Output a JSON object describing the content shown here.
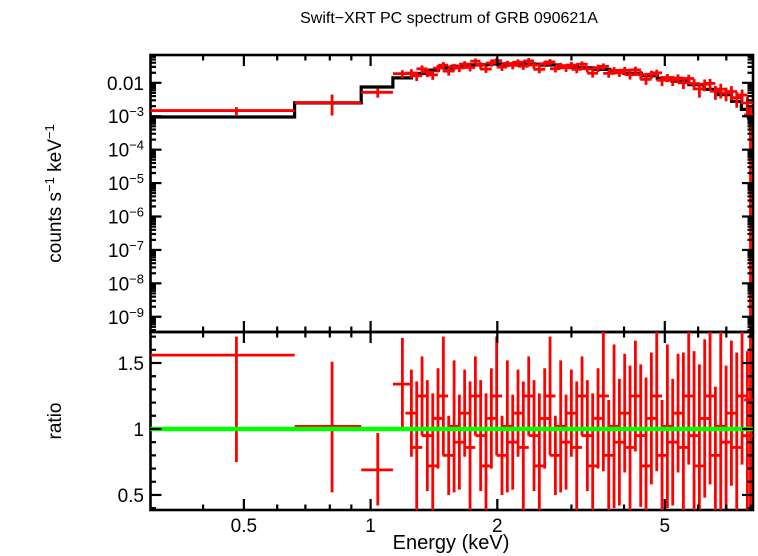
{
  "figure": {
    "background": "#ffffff"
  },
  "chart_data": {
    "type": "line",
    "title": "Swift−XRT PC spectrum of GRB 090621A",
    "xlabel": "Energy (keV)",
    "x_scale": "log",
    "xlim": [
      0.3,
      8.1
    ],
    "x_major_ticks": [
      0.5,
      1,
      2,
      5
    ],
    "x_major_tick_labels": [
      "0.5",
      "1",
      "2",
      "5"
    ],
    "x_minor_ticks": [
      0.4,
      0.6,
      0.7,
      0.8,
      0.9,
      3,
      4,
      6,
      7,
      8
    ],
    "colors": {
      "data": "#ff0000",
      "model": "#000000",
      "reference": "#00ff00",
      "frame": "#000000",
      "text": "#000000"
    },
    "point_format": "[E, dE] or [E, dElo, dEhi] halfwidths keV; [value, err] or [value, errLo, errHi]",
    "panels": [
      {
        "name": "spectrum",
        "ylabel": "counts s^-1 keV^-1",
        "y_scale": "log",
        "ylim": [
          3.5e-10,
          0.068
        ],
        "y_major_ticks": [
          0.01,
          0.001,
          0.0001,
          1e-05,
          1e-06,
          1e-07,
          1e-08,
          1e-09
        ],
        "y_major_tick_labels": [
          "0.01",
          "10^-3",
          "10^-4",
          "10^-5",
          "10^-6",
          "10^-7",
          "10^-8",
          "10^-9"
        ],
        "model_bins": [
          [
            0.3,
            0.66,
            0.00095
          ],
          [
            0.66,
            0.95,
            0.0025
          ],
          [
            0.95,
            1.13,
            0.0075
          ],
          [
            1.13,
            1.25,
            0.014
          ],
          [
            1.25,
            1.35,
            0.019
          ],
          [
            1.35,
            1.45,
            0.024
          ],
          [
            1.45,
            1.56,
            0.028
          ],
          [
            1.56,
            1.7,
            0.0315
          ],
          [
            1.7,
            1.9,
            0.0345
          ],
          [
            1.9,
            2.1,
            0.0365
          ],
          [
            2.1,
            2.32,
            0.0372
          ],
          [
            2.32,
            2.55,
            0.0362
          ],
          [
            2.55,
            2.8,
            0.0342
          ],
          [
            2.8,
            3.1,
            0.0312
          ],
          [
            3.1,
            3.4,
            0.0282
          ],
          [
            3.4,
            3.7,
            0.0252
          ],
          [
            3.7,
            4.0,
            0.0222
          ],
          [
            4.0,
            4.4,
            0.0192
          ],
          [
            4.4,
            4.8,
            0.0162
          ],
          [
            4.8,
            5.2,
            0.0136
          ],
          [
            5.2,
            5.7,
            0.0112
          ],
          [
            5.7,
            6.2,
            0.0088
          ],
          [
            6.2,
            6.7,
            0.0064
          ],
          [
            6.7,
            7.2,
            0.0044
          ],
          [
            7.2,
            7.6,
            0.0028
          ],
          [
            7.6,
            7.9,
            0.0016
          ],
          [
            7.9,
            8.1,
            0.0009
          ]
        ],
        "points": [
          [
            0.48,
            0.18,
            0.18,
            0.00148,
            0.0004,
            0.0004
          ],
          [
            0.81,
            0.15,
            0.14,
            0.00255,
            0.0015,
            0.0019
          ],
          [
            1.04,
            0.09,
            0.09,
            0.0052,
            0.0016,
            0.0016
          ],
          [
            1.19,
            0.06,
            0.06,
            0.0188,
            0.005,
            0.005
          ],
          [
            1.25,
            0.04,
            0.0196,
            0.006
          ],
          [
            1.287,
            0.04,
            0.0163,
            0.005
          ],
          [
            1.325,
            0.04,
            0.0262,
            0.007
          ],
          [
            1.364,
            0.04,
            0.0209,
            0.006
          ],
          [
            1.405,
            0.04,
            0.0173,
            0.005
          ],
          [
            1.446,
            0.04,
            0.0275,
            0.007
          ],
          [
            1.489,
            0.04,
            0.0338,
            0.008
          ],
          [
            1.533,
            0.05,
            0.0224,
            0.006
          ],
          [
            1.579,
            0.05,
            0.0301,
            0.007
          ],
          [
            1.625,
            0.05,
            0.0279,
            0.007
          ],
          [
            1.673,
            0.05,
            0.0364,
            0.008
          ],
          [
            1.723,
            0.05,
            0.0288,
            0.007
          ],
          [
            1.774,
            0.05,
            0.0442,
            0.009
          ],
          [
            1.826,
            0.05,
            0.0334,
            0.008
          ],
          [
            1.88,
            0.06,
            0.0258,
            0.006
          ],
          [
            1.936,
            0.06,
            0.0392,
            0.009
          ],
          [
            1.993,
            0.06,
            0.046,
            0.009
          ],
          [
            2.052,
            0.06,
            0.0296,
            0.007
          ],
          [
            2.113,
            0.06,
            0.0377,
            0.008
          ],
          [
            2.176,
            0.07,
            0.0333,
            0.008
          ],
          [
            2.24,
            0.07,
            0.0412,
            0.009
          ],
          [
            2.306,
            0.07,
            0.0314,
            0.007
          ],
          [
            2.375,
            0.07,
            0.0453,
            0.01
          ],
          [
            2.445,
            0.07,
            0.034,
            0.008
          ],
          [
            2.517,
            0.08,
            0.0253,
            0.006
          ],
          [
            2.592,
            0.08,
            0.0373,
            0.008
          ],
          [
            2.669,
            0.08,
            0.0423,
            0.009
          ],
          [
            2.748,
            0.08,
            0.0264,
            0.006
          ],
          [
            2.829,
            0.08,
            0.0328,
            0.007
          ],
          [
            2.913,
            0.09,
            0.0282,
            0.007
          ],
          [
            2.999,
            0.09,
            0.034,
            0.008
          ],
          [
            3.088,
            0.09,
            0.0254,
            0.006
          ],
          [
            3.179,
            0.1,
            0.0358,
            0.008
          ],
          [
            3.273,
            0.1,
            0.0263,
            0.006
          ],
          [
            3.37,
            0.1,
            0.0193,
            0.005
          ],
          [
            3.47,
            0.1,
            0.028,
            0.007
          ],
          [
            3.573,
            0.11,
            0.0311,
            0.007
          ],
          [
            3.679,
            0.11,
            0.0192,
            0.005
          ],
          [
            3.788,
            0.11,
            0.0236,
            0.006
          ],
          [
            3.9,
            0.12,
            0.02,
            0.005
          ],
          [
            4.015,
            0.12,
            0.0239,
            0.006
          ],
          [
            4.134,
            0.12,
            0.0175,
            0.005
          ],
          [
            4.257,
            0.13,
            0.0244,
            0.006
          ],
          [
            4.383,
            0.13,
            0.0177,
            0.005
          ],
          [
            4.512,
            0.14,
            0.0127,
            0.004
          ],
          [
            4.646,
            0.14,
            0.0181,
            0.005
          ],
          [
            4.784,
            0.14,
            0.0199,
            0.005
          ],
          [
            4.925,
            0.15,
            0.012,
            0.004
          ],
          [
            5.071,
            0.15,
            0.0144,
            0.004
          ],
          [
            5.221,
            0.16,
            0.012,
            0.004
          ],
          [
            5.376,
            0.16,
            0.0139,
            0.004
          ],
          [
            5.535,
            0.17,
            0.01,
            0.0035
          ],
          [
            5.699,
            0.17,
            0.0135,
            0.004
          ],
          [
            5.868,
            0.18,
            0.0095,
            0.0035
          ],
          [
            6.041,
            0.18,
            0.0066,
            0.003
          ],
          [
            6.22,
            0.19,
            0.0091,
            0.0035
          ],
          [
            6.404,
            0.19,
            0.0096,
            0.0035
          ],
          [
            6.594,
            0.2,
            0.0056,
            0.0025
          ],
          [
            6.79,
            0.2,
            0.0064,
            0.003
          ],
          [
            6.991,
            0.21,
            0.005,
            0.0022
          ],
          [
            7.198,
            0.22,
            0.0055,
            0.0025
          ],
          [
            7.411,
            0.22,
            0.0036,
            0.0018
          ],
          [
            7.63,
            0.23,
            0.0043,
            0.002
          ],
          [
            7.856,
            0.24,
            0.0025,
            0.0013
          ],
          [
            7.99,
            0.27,
            0.11,
            0.0011,
            0.0011,
            0.0008
          ]
        ]
      },
      {
        "name": "ratio",
        "ylabel": "ratio",
        "y_scale": "linear",
        "ylim": [
          0.386,
          1.735
        ],
        "y_major_ticks": [
          0.5,
          1,
          1.5
        ],
        "y_major_tick_labels": [
          "0.5",
          "1",
          "1.5"
        ],
        "y_minor_step": 0.1,
        "reference_line": {
          "y": 1,
          "color": "#00ff00"
        },
        "points": [
          [
            0.48,
            0.18,
            0.18,
            1.56,
            0.81,
            0.14
          ],
          [
            0.81,
            0.15,
            0.14,
            1.02,
            0.5,
            0.49
          ],
          [
            1.04,
            0.09,
            0.09,
            0.69,
            0.27,
            0.28
          ],
          [
            1.19,
            0.06,
            0.06,
            1.34,
            0.35,
            0.35
          ],
          [
            1.25,
            0.04,
            1.12,
            0.33
          ],
          [
            1.287,
            0.04,
            0.86,
            0.5
          ],
          [
            1.325,
            0.04,
            1.25,
            0.3
          ],
          [
            1.364,
            0.04,
            0.95,
            0.42
          ],
          [
            1.405,
            0.04,
            0.72,
            0.55
          ],
          [
            1.446,
            0.04,
            1.08,
            0.38
          ],
          [
            1.489,
            0.04,
            1.25,
            0.45
          ],
          [
            1.533,
            0.05,
            0.8,
            0.3
          ],
          [
            1.579,
            0.05,
            1.02,
            0.5
          ],
          [
            1.625,
            0.05,
            0.9,
            0.36
          ],
          [
            1.673,
            0.05,
            1.12,
            0.33
          ],
          [
            1.723,
            0.05,
            0.86,
            0.5
          ],
          [
            1.774,
            0.05,
            1.25,
            0.3
          ],
          [
            1.826,
            0.05,
            0.95,
            0.42
          ],
          [
            1.88,
            0.06,
            0.72,
            0.55
          ],
          [
            1.936,
            0.06,
            1.08,
            0.38
          ],
          [
            1.993,
            0.06,
            1.25,
            0.45
          ],
          [
            2.052,
            0.06,
            0.8,
            0.3
          ],
          [
            2.113,
            0.06,
            1.02,
            0.5
          ],
          [
            2.176,
            0.07,
            0.9,
            0.36
          ],
          [
            2.24,
            0.07,
            1.12,
            0.33
          ],
          [
            2.306,
            0.07,
            0.86,
            0.5
          ],
          [
            2.375,
            0.07,
            1.25,
            0.3
          ],
          [
            2.445,
            0.07,
            0.95,
            0.42
          ],
          [
            2.517,
            0.08,
            0.72,
            0.55
          ],
          [
            2.592,
            0.08,
            1.08,
            0.38
          ],
          [
            2.669,
            0.08,
            1.25,
            0.45
          ],
          [
            2.748,
            0.08,
            0.8,
            0.3
          ],
          [
            2.829,
            0.08,
            1.02,
            0.5
          ],
          [
            2.913,
            0.09,
            0.9,
            0.36
          ],
          [
            2.999,
            0.09,
            1.12,
            0.33
          ],
          [
            3.088,
            0.09,
            0.86,
            0.5
          ],
          [
            3.179,
            0.1,
            1.25,
            0.3
          ],
          [
            3.273,
            0.1,
            0.95,
            0.42
          ],
          [
            3.37,
            0.1,
            0.72,
            0.55
          ],
          [
            3.47,
            0.1,
            1.08,
            0.38
          ],
          [
            3.573,
            0.11,
            1.25,
            0.57
          ],
          [
            3.679,
            0.11,
            0.8,
            0.42
          ],
          [
            3.788,
            0.11,
            1.02,
            0.62
          ],
          [
            3.9,
            0.12,
            0.9,
            0.48
          ],
          [
            4.015,
            0.12,
            1.12,
            0.45
          ],
          [
            4.134,
            0.12,
            0.86,
            0.62
          ],
          [
            4.257,
            0.13,
            1.25,
            0.42
          ],
          [
            4.383,
            0.13,
            0.95,
            0.54
          ],
          [
            4.512,
            0.14,
            0.72,
            0.67
          ],
          [
            4.646,
            0.14,
            1.08,
            0.5
          ],
          [
            4.784,
            0.14,
            1.25,
            0.57
          ],
          [
            4.925,
            0.15,
            0.8,
            0.42
          ],
          [
            5.071,
            0.15,
            1.02,
            0.62
          ],
          [
            5.221,
            0.16,
            0.9,
            0.48
          ],
          [
            5.376,
            0.16,
            1.12,
            0.45
          ],
          [
            5.535,
            0.17,
            0.86,
            0.72
          ],
          [
            5.699,
            0.17,
            1.25,
            0.52
          ],
          [
            5.868,
            0.18,
            0.95,
            0.64
          ],
          [
            6.041,
            0.18,
            0.72,
            0.77
          ],
          [
            6.22,
            0.19,
            1.08,
            0.6
          ],
          [
            6.404,
            0.19,
            1.25,
            0.67
          ],
          [
            6.594,
            0.2,
            0.8,
            0.52
          ],
          [
            6.79,
            0.2,
            1.02,
            0.72
          ],
          [
            6.991,
            0.21,
            0.9,
            0.58
          ],
          [
            7.198,
            0.22,
            1.12,
            0.55
          ],
          [
            7.411,
            0.22,
            0.86,
            0.72
          ],
          [
            7.63,
            0.23,
            1.25,
            0.52
          ],
          [
            7.856,
            0.24,
            0.95,
            0.64
          ],
          [
            7.99,
            0.27,
            0.11,
            1.22,
            0.84,
            0.51
          ]
        ]
      }
    ]
  }
}
